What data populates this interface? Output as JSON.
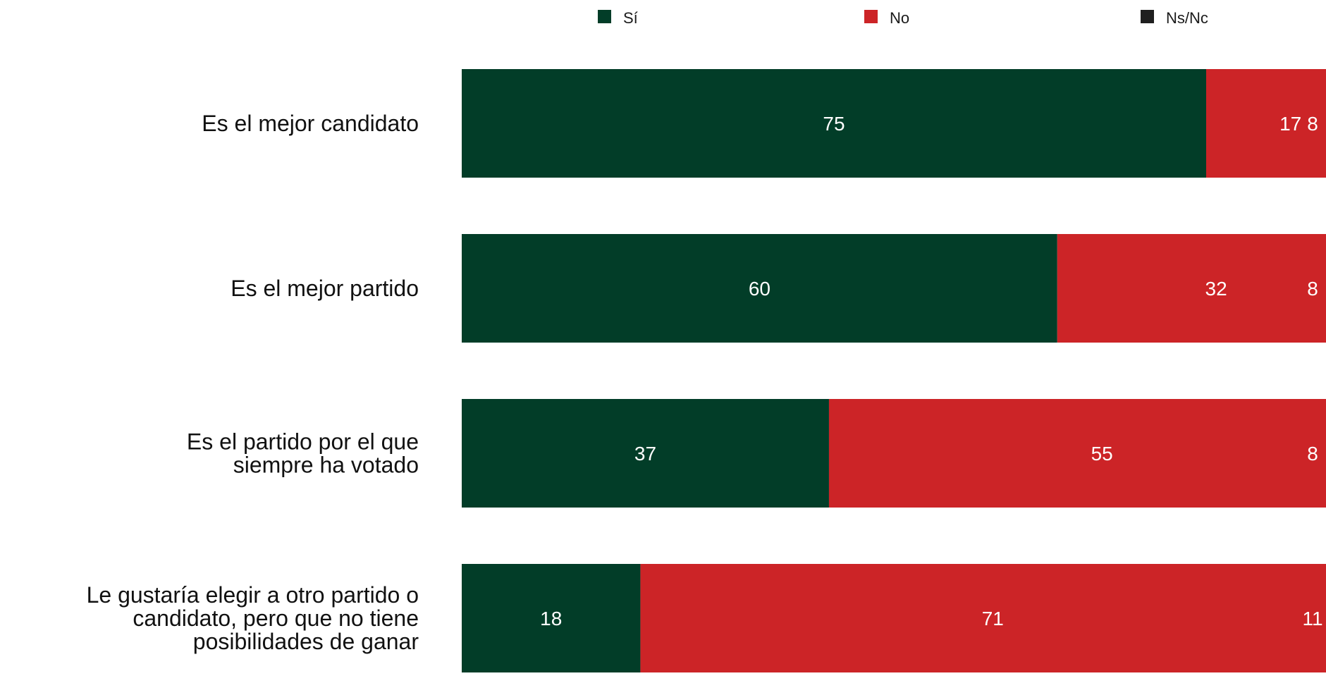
{
  "chart_data": {
    "type": "bar",
    "orientation": "horizontal",
    "stacked": true,
    "legend_position": "top",
    "categories": [
      [
        "Es el mejor candidato"
      ],
      [
        "Es el mejor partido"
      ],
      [
        "Es el partido por el que",
        "siempre ha votado"
      ],
      [
        "Le gustaría elegir a otro partido o",
        "candidato, pero que no tiene",
        "posibilidades de ganar"
      ]
    ],
    "series": [
      {
        "name": "Sí",
        "color": "#023d28",
        "values": [
          75,
          60,
          37,
          18
        ]
      },
      {
        "name": "No",
        "color": "#cc2427",
        "values": [
          17,
          32,
          55,
          71
        ]
      },
      {
        "name": "Ns/Nc",
        "color": "#1f1f1f",
        "values": [
          8,
          8,
          8,
          11
        ]
      }
    ],
    "xlim": [
      0,
      100
    ],
    "grid": false
  }
}
